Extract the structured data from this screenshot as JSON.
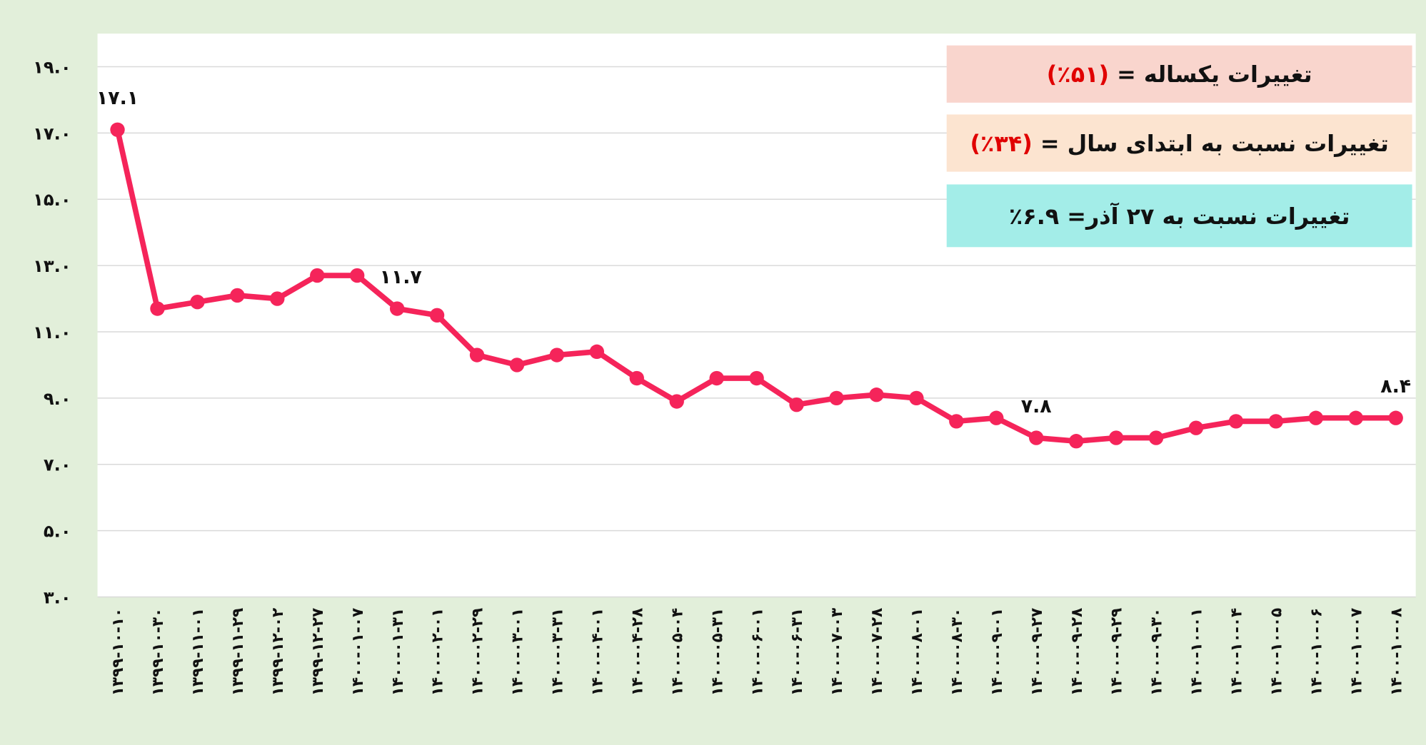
{
  "chart_data": {
    "type": "line",
    "categories": [
      "۱۳۹۹-۱۰-۱۰",
      "۱۳۹۹-۱۰-۳۰",
      "۱۳۹۹-۱۱-۰۱",
      "۱۳۹۹-۱۱-۲۹",
      "۱۳۹۹-۱۲-۰۲",
      "۱۳۹۹-۱۲-۲۷",
      "۱۴۰۰-۰۱-۰۷",
      "۱۴۰۰-۰۱-۳۱",
      "۱۴۰۰-۰۲-۰۱",
      "۱۴۰۰-۰۲-۲۹",
      "۱۴۰۰-۰۳-۰۱",
      "۱۴۰۰-۰۳-۳۱",
      "۱۴۰۰-۰۴-۰۱",
      "۱۴۰۰-۰۴-۲۸",
      "۱۴۰۰-۰۵-۰۴",
      "۱۴۰۰-۰۵-۳۱",
      "۱۴۰۰-۰۶-۰۱",
      "۱۴۰۰-۰۶-۳۱",
      "۱۴۰۰-۰۷-۰۳",
      "۱۴۰۰-۰۷-۲۸",
      "۱۴۰۰-۰۸-۰۱",
      "۱۴۰۰-۰۸-۳۰",
      "۱۴۰۰-۰۹-۰۱",
      "۱۴۰۰-۰۹-۲۷",
      "۱۴۰۰-۰۹-۲۸",
      "۱۴۰۰-۰۹-۲۹",
      "۱۴۰۰-۰۹-۳۰",
      "۱۴۰۰-۱۰-۰۱",
      "۱۴۰۰-۱۰-۰۴",
      "۱۴۰۰-۱۰-۰۵",
      "۱۴۰۰-۱۰-۰۶",
      "۱۴۰۰-۱۰-۰۷",
      "۱۴۰۰-۱۰-۰۸"
    ],
    "values": [
      17.1,
      11.7,
      11.9,
      12.1,
      12.0,
      12.7,
      12.7,
      11.7,
      11.5,
      10.3,
      10.0,
      10.3,
      10.4,
      9.6,
      8.9,
      9.6,
      9.6,
      8.8,
      9.0,
      9.1,
      9.0,
      8.3,
      8.4,
      7.8,
      7.7,
      7.8,
      7.8,
      8.1,
      8.3,
      8.3,
      8.4,
      8.4,
      8.4
    ],
    "value_labels": [
      "۱۷.۱",
      null,
      null,
      null,
      null,
      null,
      null,
      "۱۱.۷",
      null,
      null,
      null,
      null,
      null,
      null,
      null,
      null,
      null,
      null,
      null,
      null,
      null,
      null,
      null,
      "۷.۸",
      null,
      null,
      null,
      null,
      null,
      null,
      null,
      null,
      "۸.۴"
    ],
    "color": "#f5245a",
    "ylim": [
      3,
      20
    ],
    "yticks": [
      {
        "value": 3,
        "label": "۳.۰"
      },
      {
        "value": 5,
        "label": "۵.۰"
      },
      {
        "value": 7,
        "label": "۷.۰"
      },
      {
        "value": 9,
        "label": "۹.۰"
      },
      {
        "value": 11,
        "label": "۱۱.۰"
      },
      {
        "value": 13,
        "label": "۱۳.۰"
      },
      {
        "value": 15,
        "label": "۱۵.۰"
      },
      {
        "value": 17,
        "label": "۱۷.۰"
      },
      {
        "value": 19,
        "label": "۱۹.۰"
      }
    ],
    "grid": true,
    "annotations": [
      {
        "text": "تغییرات یکساله =",
        "highlight": "(۵۱٪)",
        "color": "#f9d5cd"
      },
      {
        "text": "تغییرات نسبت به ابتدای سال =",
        "highlight": "(۳۴٪)",
        "color": "#fce4d0"
      },
      {
        "text": "تغییرات نسبت به ۲۷ آذر= ۶.۹٪",
        "color": "#a3ede8"
      }
    ]
  }
}
